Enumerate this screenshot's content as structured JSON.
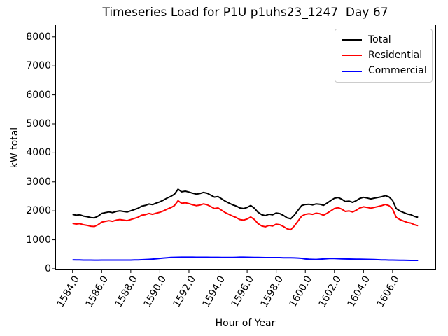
{
  "chart_data": {
    "type": "line",
    "title": "Timeseries Load for P1U p1uhs23_1247  Day 67",
    "xlabel": "Hour of Year",
    "ylabel": "kW total",
    "xlim": [
      1582.81,
      1608.94
    ],
    "ylim": [
      -25,
      8430
    ],
    "grid": false,
    "legend": {
      "position": "upper right"
    },
    "x_ticks": {
      "values": [
        1584,
        1586,
        1588,
        1590,
        1592,
        1594,
        1596,
        1598,
        1600,
        1602,
        1604,
        1606
      ],
      "labels": [
        "1584.0",
        "1586.0",
        "1588.0",
        "1590.0",
        "1592.0",
        "1594.0",
        "1596.0",
        "1598.0",
        "1600.0",
        "1602.0",
        "1604.0",
        "1606.0"
      ]
    },
    "y_ticks": {
      "values": [
        0,
        1000,
        2000,
        3000,
        4000,
        5000,
        6000,
        7000,
        8000
      ],
      "labels": [
        "0",
        "1000",
        "2000",
        "3000",
        "4000",
        "5000",
        "6000",
        "7000",
        "8000"
      ]
    },
    "x": [
      1584.0,
      1584.25,
      1584.5,
      1584.75,
      1585.0,
      1585.25,
      1585.5,
      1585.75,
      1586.0,
      1586.25,
      1586.5,
      1586.75,
      1587.0,
      1587.25,
      1587.5,
      1587.75,
      1588.0,
      1588.25,
      1588.5,
      1588.75,
      1589.0,
      1589.25,
      1589.5,
      1589.75,
      1590.0,
      1590.25,
      1590.5,
      1590.75,
      1591.0,
      1591.25,
      1591.5,
      1591.75,
      1592.0,
      1592.25,
      1592.5,
      1592.75,
      1593.0,
      1593.25,
      1593.5,
      1593.75,
      1594.0,
      1594.25,
      1594.5,
      1594.75,
      1595.0,
      1595.25,
      1595.5,
      1595.75,
      1596.0,
      1596.25,
      1596.5,
      1596.75,
      1597.0,
      1597.25,
      1597.5,
      1597.75,
      1598.0,
      1598.25,
      1598.5,
      1598.75,
      1599.0,
      1599.25,
      1599.5,
      1599.75,
      1600.0,
      1600.25,
      1600.5,
      1600.75,
      1601.0,
      1601.25,
      1601.5,
      1601.75,
      1602.0,
      1602.25,
      1602.5,
      1602.75,
      1603.0,
      1603.25,
      1603.5,
      1603.75,
      1604.0,
      1604.25,
      1604.5,
      1604.75,
      1605.0,
      1605.25,
      1605.5,
      1605.75,
      1606.0,
      1606.25,
      1606.5,
      1606.75,
      1607.0,
      1607.25,
      1607.5,
      1607.75
    ],
    "series": [
      {
        "name": "Total",
        "color": "#000000",
        "values": [
          1880,
          1850,
          1865,
          1820,
          1800,
          1770,
          1758,
          1818,
          1910,
          1940,
          1962,
          1940,
          1980,
          2002,
          1980,
          1960,
          2002,
          2045,
          2088,
          2162,
          2188,
          2235,
          2215,
          2268,
          2310,
          2372,
          2442,
          2500,
          2575,
          2748,
          2660,
          2680,
          2650,
          2610,
          2578,
          2598,
          2638,
          2608,
          2546,
          2475,
          2495,
          2414,
          2332,
          2270,
          2210,
          2165,
          2100,
          2080,
          2118,
          2185,
          2092,
          1950,
          1868,
          1836,
          1885,
          1866,
          1926,
          1905,
          1842,
          1760,
          1728,
          1855,
          2020,
          2182,
          2220,
          2230,
          2205,
          2242,
          2230,
          2190,
          2270,
          2358,
          2435,
          2460,
          2405,
          2320,
          2338,
          2295,
          2352,
          2430,
          2468,
          2445,
          2412,
          2438,
          2462,
          2488,
          2525,
          2482,
          2360,
          2078,
          1996,
          1944,
          1892,
          1870,
          1810,
          1778
        ]
      },
      {
        "name": "Residential",
        "color": "#ff0000",
        "values": [
          1570,
          1545,
          1560,
          1520,
          1500,
          1470,
          1460,
          1520,
          1610,
          1640,
          1660,
          1640,
          1680,
          1700,
          1680,
          1660,
          1700,
          1740,
          1780,
          1850,
          1870,
          1910,
          1880,
          1920,
          1950,
          2000,
          2060,
          2110,
          2180,
          2350,
          2260,
          2280,
          2250,
          2210,
          2180,
          2200,
          2240,
          2210,
          2150,
          2080,
          2100,
          2020,
          1940,
          1880,
          1820,
          1770,
          1700,
          1680,
          1720,
          1790,
          1700,
          1560,
          1480,
          1450,
          1500,
          1480,
          1540,
          1520,
          1460,
          1380,
          1350,
          1480,
          1650,
          1820,
          1880,
          1900,
          1880,
          1920,
          1900,
          1850,
          1920,
          2000,
          2080,
          2110,
          2060,
          1980,
          2000,
          1960,
          2020,
          2100,
          2140,
          2120,
          2090,
          2120,
          2150,
          2180,
          2220,
          2180,
          2060,
          1780,
          1700,
          1650,
          1600,
          1580,
          1520,
          1490
        ]
      },
      {
        "name": "Commercial",
        "color": "#0000ff",
        "values": [
          310,
          305,
          305,
          300,
          300,
          300,
          298,
          298,
          300,
          300,
          302,
          300,
          300,
          302,
          300,
          300,
          302,
          305,
          308,
          312,
          318,
          325,
          335,
          348,
          360,
          372,
          382,
          390,
          395,
          398,
          400,
          400,
          400,
          400,
          398,
          398,
          398,
          398,
          396,
          395,
          395,
          394,
          392,
          390,
          390,
          395,
          400,
          400,
          398,
          395,
          392,
          390,
          388,
          386,
          385,
          386,
          386,
          385,
          382,
          380,
          378,
          375,
          370,
          362,
          340,
          330,
          325,
          322,
          330,
          340,
          350,
          358,
          355,
          350,
          345,
          340,
          338,
          335,
          332,
          330,
          328,
          325,
          322,
          318,
          312,
          308,
          305,
          302,
          300,
          298,
          296,
          294,
          292,
          290,
          290,
          288
        ]
      }
    ]
  }
}
